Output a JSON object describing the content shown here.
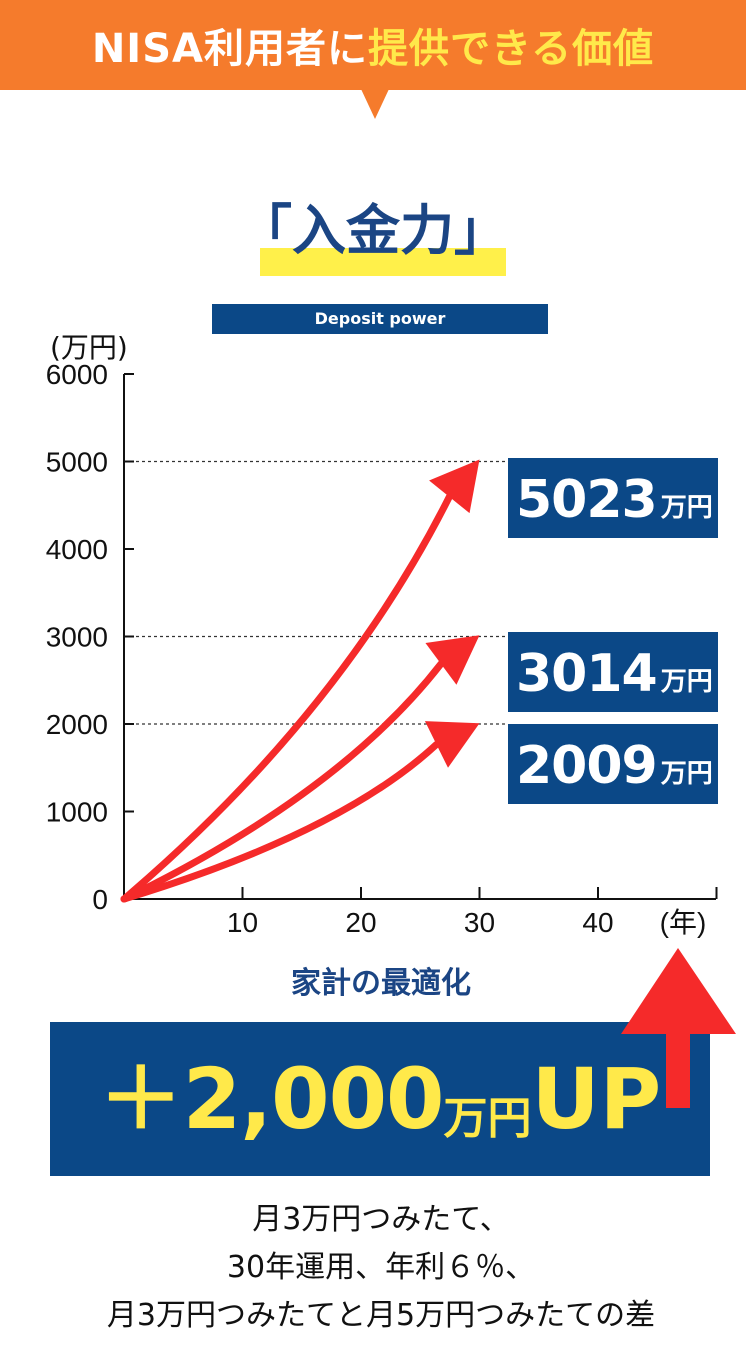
{
  "banner": {
    "prefix": "NISA利用者に",
    "highlight": "提供できる価値",
    "colors": {
      "background": "#f57b2c",
      "highlight_text": "#ffe94a"
    }
  },
  "title": "「入金力」",
  "subtitle": "Deposit power",
  "chart_data": {
    "type": "line",
    "ylabel": "(万円)",
    "xlabel": "(年)",
    "ylim": [
      0,
      6000
    ],
    "yticks": [
      "0",
      "1000",
      "2000",
      "3000",
      "4000",
      "5000",
      "6000"
    ],
    "xlim": [
      0,
      50
    ],
    "xticks": [
      "10",
      "20",
      "30",
      "40"
    ],
    "series": [
      {
        "x": [
          0,
          30
        ],
        "values": [
          0,
          5023
        ],
        "end_label": "5023",
        "end_unit": "万円"
      },
      {
        "x": [
          0,
          30
        ],
        "values": [
          0,
          3014
        ],
        "end_label": "3014",
        "end_unit": "万円"
      },
      {
        "x": [
          0,
          30
        ],
        "values": [
          0,
          2009
        ],
        "end_label": "2009",
        "end_unit": "万円"
      }
    ],
    "reference_lines": [
      5000,
      3000,
      2000
    ],
    "colors": {
      "arrow": "#f52a2a",
      "label_box": "#0b4887"
    }
  },
  "optimization_label": "家計の最適化",
  "result": {
    "sign": "＋",
    "amount": "2,000",
    "unit": "万円",
    "suffix": "UP"
  },
  "caption": [
    "月3万円つみたて、",
    "30年運用、年利６％、",
    "月3万円つみたてと月5万円つみたての差"
  ]
}
